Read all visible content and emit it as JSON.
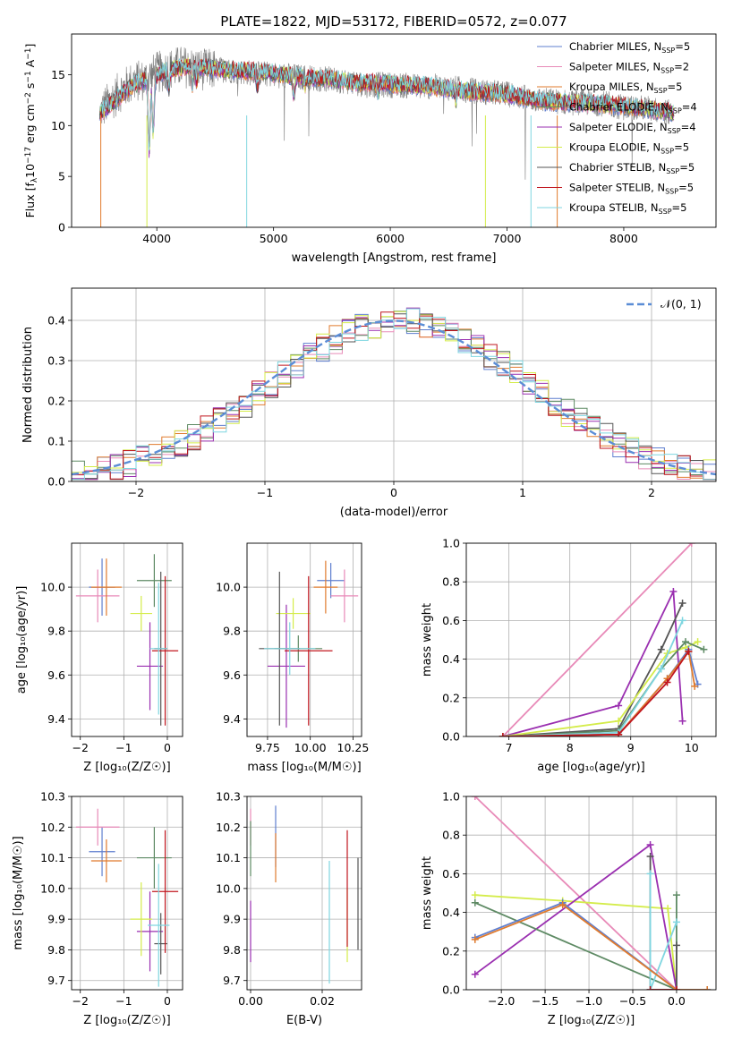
{
  "figure": {
    "title": "PLATE=1822, MJD=53172, FIBERID=0572, z=0.077"
  },
  "colors": {
    "Chabrier MILES": "#5f7fcf",
    "Salpeter MILES": "#e88ab8",
    "Kroupa MILES": "#e07b2e",
    "Chabrier ELODIE": "#5e8a64",
    "Salpeter ELODIE": "#9a2fb0",
    "Kroupa ELODIE": "#d4ec4a",
    "Chabrier STELIB": "#555555",
    "Salpeter STELIB": "#c0161e",
    "Kroupa STELIB": "#7fd6e0"
  },
  "chart_data": [
    {
      "id": "spectrum",
      "type": "line",
      "xlabel": "wavelength [Angstrom, rest frame]",
      "ylabel": "Flux [f$_{\\lambda}$10$^{-17}$ erg cm$^{-2}$ s$^{-1}$ A$^{-1}$]",
      "ylabel_parts": {
        "base": "Flux [f",
        "sub1": "λ",
        "mid": "10",
        "sup1": "−17",
        "mid2": " erg cm",
        "sup2": "−2",
        "mid3": " s",
        "sup3": "−1",
        "mid4": " A",
        "sup4": "−1",
        "end": "]"
      },
      "xlim": [
        3270,
        8790
      ],
      "ylim": [
        0,
        19
      ],
      "xticks": [
        4000,
        5000,
        6000,
        7000,
        8000
      ],
      "yticks": [
        0,
        5,
        10,
        15
      ],
      "grid": false,
      "legend_placement": "top-right",
      "legend": [
        {
          "label": "Chabrier MILES, N",
          "sub": "SSP",
          "eq": "=5",
          "series": "Chabrier MILES"
        },
        {
          "label": "Salpeter MILES, N",
          "sub": "SSP",
          "eq": "=2",
          "series": "Salpeter MILES"
        },
        {
          "label": "Kroupa MILES, N",
          "sub": "SSP",
          "eq": "=5",
          "series": "Kroupa MILES"
        },
        {
          "label": "Chabrier ELODIE, N",
          "sub": "SSP",
          "eq": "=4",
          "series": "Chabrier ELODIE"
        },
        {
          "label": "Salpeter ELODIE, N",
          "sub": "SSP",
          "eq": "=4",
          "series": "Salpeter ELODIE"
        },
        {
          "label": "Kroupa ELODIE, N",
          "sub": "SSP",
          "eq": "=5",
          "series": "Kroupa ELODIE"
        },
        {
          "label": "Chabrier STELIB, N",
          "sub": "SSP",
          "eq": "=5",
          "series": "Chabrier STELIB"
        },
        {
          "label": "Salpeter STELIB, N",
          "sub": "SSP",
          "eq": "=5",
          "series": "Salpeter STELIB"
        },
        {
          "label": "Kroupa STELIB, N",
          "sub": "SSP",
          "eq": "=5",
          "series": "Kroupa STELIB"
        }
      ],
      "data_continuum": [
        [
          3520,
          11.5
        ],
        [
          3700,
          13.5
        ],
        [
          3800,
          14.3
        ],
        [
          3900,
          14.5
        ],
        [
          4000,
          15.2
        ],
        [
          4200,
          15.8
        ],
        [
          4400,
          15.5
        ],
        [
          4600,
          15.5
        ],
        [
          4800,
          15.2
        ],
        [
          5000,
          15.0
        ],
        [
          5200,
          14.8
        ],
        [
          5400,
          14.6
        ],
        [
          5600,
          14.4
        ],
        [
          5800,
          14.0
        ],
        [
          6000,
          14.0
        ],
        [
          6200,
          13.9
        ],
        [
          6400,
          13.8
        ],
        [
          6600,
          13.6
        ],
        [
          6800,
          13.3
        ],
        [
          7000,
          13.1
        ],
        [
          7200,
          12.6
        ],
        [
          7500,
          12.3
        ],
        [
          7800,
          12.2
        ],
        [
          8000,
          11.8
        ],
        [
          8200,
          11.7
        ],
        [
          8420,
          11.2
        ]
      ],
      "model_continuum": [
        [
          3520,
          11.3
        ],
        [
          3650,
          12.5
        ],
        [
          3800,
          14.0
        ],
        [
          3950,
          14.6
        ],
        [
          4100,
          15.5
        ],
        [
          4300,
          15.9
        ],
        [
          4500,
          15.6
        ],
        [
          4700,
          15.4
        ],
        [
          4900,
          15.3
        ],
        [
          5100,
          15.0
        ],
        [
          5300,
          14.7
        ],
        [
          5500,
          14.6
        ],
        [
          5700,
          14.2
        ],
        [
          5900,
          14.2
        ],
        [
          6100,
          14.0
        ],
        [
          6300,
          13.9
        ],
        [
          6500,
          13.6
        ],
        [
          6700,
          13.3
        ],
        [
          6900,
          13.2
        ],
        [
          7100,
          12.9
        ],
        [
          7300,
          12.4
        ],
        [
          7500,
          12.3
        ],
        [
          7800,
          12.1
        ],
        [
          8100,
          11.8
        ],
        [
          8420,
          11.3
        ]
      ]
    },
    {
      "id": "residuals",
      "type": "step-histogram",
      "xlabel": "(data-model)/error",
      "ylabel": "Normed distribution",
      "xlim": [
        -2.5,
        2.5
      ],
      "ylim": [
        0,
        0.48
      ],
      "xticks": [
        -2,
        -1,
        0,
        1,
        2
      ],
      "yticks": [
        0.0,
        0.1,
        0.2,
        0.3,
        0.4
      ],
      "grid": true,
      "legend_placement": "top-right",
      "reference_label": "𝒩(0, 1)",
      "reference_color": "#5b8dd6",
      "bin_width": 0.1,
      "bin_start": -2.5
    },
    {
      "id": "age_vs_Z",
      "type": "errorbar",
      "xlabel": "Z [log₁₀(Z/Z☉)]",
      "ylabel": "age  [log₁₀(age/yr)]",
      "xlim": [
        -2.2,
        0.35
      ],
      "ylim": [
        9.32,
        10.2
      ],
      "xticks": [
        -2,
        -1,
        0
      ],
      "yticks": [
        9.4,
        9.6,
        9.8,
        10.0
      ],
      "grid": true,
      "points": [
        {
          "series": "Chabrier MILES",
          "x": -1.5,
          "xerr": 0.3,
          "y": 10.0,
          "yerr": 0.13
        },
        {
          "series": "Salpeter MILES",
          "x": -1.6,
          "xerr": 0.5,
          "y": 9.96,
          "yerr": 0.12
        },
        {
          "series": "Kroupa MILES",
          "x": -1.4,
          "xerr": 0.35,
          "y": 10.0,
          "yerr": 0.13
        },
        {
          "series": "Chabrier ELODIE",
          "x": -0.3,
          "xerr": 0.4,
          "y": 10.03,
          "yerr": 0.12
        },
        {
          "series": "Salpeter ELODIE",
          "x": -0.4,
          "xerr": 0.3,
          "y": 9.64,
          "yerr": 0.2
        },
        {
          "series": "Kroupa ELODIE",
          "x": -0.6,
          "xerr": 0.25,
          "y": 9.88,
          "yerr": 0.08
        },
        {
          "series": "Chabrier STELIB",
          "x": -0.15,
          "xerr": 0.15,
          "y": 9.72,
          "yerr": 0.35
        },
        {
          "series": "Salpeter STELIB",
          "x": -0.05,
          "xerr": 0.3,
          "y": 9.71,
          "yerr": 0.34
        },
        {
          "series": "Kroupa STELIB",
          "x": -0.2,
          "xerr": 0.2,
          "y": 9.72,
          "yerr": 0.3
        }
      ]
    },
    {
      "id": "age_vs_mass",
      "type": "errorbar",
      "xlabel": "mass [log₁₀(M/M☉)]",
      "ylabel": "",
      "xlim": [
        9.63,
        10.3
      ],
      "ylim": [
        9.32,
        10.2
      ],
      "xticks": [
        9.75,
        10.0,
        10.25
      ],
      "yticks": [
        9.4,
        9.6,
        9.8,
        10.0
      ],
      "grid": true,
      "points": [
        {
          "series": "Chabrier MILES",
          "x": 10.12,
          "xerr": 0.08,
          "y": 10.03,
          "yerr": 0.08
        },
        {
          "series": "Salpeter MILES",
          "x": 10.2,
          "xerr": 0.08,
          "y": 9.96,
          "yerr": 0.12
        },
        {
          "series": "Kroupa MILES",
          "x": 10.09,
          "xerr": 0.07,
          "y": 10.0,
          "yerr": 0.12
        },
        {
          "series": "Chabrier ELODIE",
          "x": 9.93,
          "xerr": 0.14,
          "y": 9.72,
          "yerr": 0.06
        },
        {
          "series": "Salpeter ELODIE",
          "x": 9.86,
          "xerr": 0.11,
          "y": 9.64,
          "yerr": 0.28
        },
        {
          "series": "Kroupa ELODIE",
          "x": 9.9,
          "xerr": 0.1,
          "y": 9.88,
          "yerr": 0.07
        },
        {
          "series": "Chabrier STELIB",
          "x": 9.82,
          "xerr": 0.12,
          "y": 9.72,
          "yerr": 0.35
        },
        {
          "series": "Salpeter STELIB",
          "x": 9.99,
          "xerr": 0.14,
          "y": 9.71,
          "yerr": 0.34
        },
        {
          "series": "Kroupa STELIB",
          "x": 9.88,
          "xerr": 0.15,
          "y": 9.72,
          "yerr": 0.12
        }
      ]
    },
    {
      "id": "weight_vs_age",
      "type": "line",
      "xlabel": "age  [log₁₀(age/yr)]",
      "ylabel": "mass weight",
      "xlim": [
        6.3,
        10.4
      ],
      "ylim": [
        0,
        1.0
      ],
      "xticks": [
        7,
        8,
        9,
        10
      ],
      "yticks": [
        0.0,
        0.2,
        0.4,
        0.6,
        0.8,
        1.0
      ],
      "grid": true,
      "series": [
        {
          "series": "Salpeter MILES",
          "x": [
            6.9,
            10.0
          ],
          "y": [
            0.0,
            1.0
          ]
        },
        {
          "series": "Salpeter ELODIE",
          "x": [
            6.9,
            8.8,
            9.7,
            9.85
          ],
          "y": [
            0.0,
            0.16,
            0.75,
            0.08
          ]
        },
        {
          "series": "Chabrier STELIB",
          "x": [
            6.9,
            8.8,
            9.5,
            9.85
          ],
          "y": [
            0.0,
            0.04,
            0.45,
            0.69
          ]
        },
        {
          "series": "Kroupa ELODIE",
          "x": [
            6.9,
            8.8,
            9.6,
            9.9,
            10.1
          ],
          "y": [
            0.0,
            0.08,
            0.43,
            0.46,
            0.49
          ]
        },
        {
          "series": "Chabrier ELODIE",
          "x": [
            6.9,
            8.8,
            9.5,
            9.9,
            10.2
          ],
          "y": [
            0.0,
            0.03,
            0.35,
            0.49,
            0.45
          ]
        },
        {
          "series": "Kroupa STELIB",
          "x": [
            6.9,
            8.8,
            9.5,
            9.85
          ],
          "y": [
            0.0,
            0.02,
            0.35,
            0.6
          ]
        },
        {
          "series": "Chabrier MILES",
          "x": [
            6.9,
            8.8,
            9.6,
            9.95,
            10.1
          ],
          "y": [
            0.0,
            0.01,
            0.3,
            0.45,
            0.27
          ]
        },
        {
          "series": "Kroupa MILES",
          "x": [
            6.9,
            8.8,
            9.6,
            9.95,
            10.05
          ],
          "y": [
            0.0,
            0.01,
            0.3,
            0.44,
            0.26
          ]
        },
        {
          "series": "Salpeter STELIB",
          "x": [
            6.9,
            8.8,
            9.6,
            9.95
          ],
          "y": [
            0.0,
            0.01,
            0.28,
            0.44
          ]
        }
      ]
    },
    {
      "id": "mass_vs_Z",
      "type": "errorbar",
      "xlabel": "Z [log₁₀(Z/Z☉)]",
      "ylabel": "mass [log₁₀(M/M☉)]",
      "xlim": [
        -2.2,
        0.35
      ],
      "ylim": [
        9.67,
        10.3
      ],
      "xticks": [
        -2,
        -1,
        0
      ],
      "yticks": [
        9.7,
        9.8,
        9.9,
        10.0,
        10.1,
        10.2,
        10.3
      ],
      "grid": true,
      "points": [
        {
          "series": "Chabrier MILES",
          "x": -1.5,
          "xerr": 0.3,
          "y": 10.12,
          "yerr": 0.08
        },
        {
          "series": "Salpeter MILES",
          "x": -1.6,
          "xerr": 0.5,
          "y": 10.2,
          "yerr": 0.06
        },
        {
          "series": "Kroupa MILES",
          "x": -1.4,
          "xerr": 0.35,
          "y": 10.09,
          "yerr": 0.07
        },
        {
          "series": "Chabrier ELODIE",
          "x": -0.3,
          "xerr": 0.4,
          "y": 10.1,
          "yerr": 0.1
        },
        {
          "series": "Salpeter ELODIE",
          "x": -0.4,
          "xerr": 0.3,
          "y": 9.86,
          "yerr": 0.13
        },
        {
          "series": "Kroupa ELODIE",
          "x": -0.6,
          "xerr": 0.25,
          "y": 9.9,
          "yerr": 0.12
        },
        {
          "series": "Chabrier STELIB",
          "x": -0.15,
          "xerr": 0.15,
          "y": 9.82,
          "yerr": 0.1
        },
        {
          "series": "Salpeter STELIB",
          "x": -0.05,
          "xerr": 0.3,
          "y": 9.99,
          "yerr": 0.2
        },
        {
          "series": "Kroupa STELIB",
          "x": -0.2,
          "xerr": 0.25,
          "y": 9.88,
          "yerr": 0.2
        }
      ]
    },
    {
      "id": "mass_vs_ebv",
      "type": "errorbar",
      "xlabel": "E(B-V)",
      "ylabel": "",
      "xlim": [
        -0.001,
        0.031
      ],
      "ylim": [
        9.67,
        10.3
      ],
      "xticks": [
        0.0,
        0.02
      ],
      "yticks": [
        9.7,
        9.8,
        9.9,
        10.0,
        10.1,
        10.2,
        10.3
      ],
      "grid": true,
      "points": [
        {
          "series": "Chabrier MILES",
          "x": 0.007,
          "xerr": 0,
          "y": 10.17,
          "yerr": 0.1
        },
        {
          "series": "Salpeter MILES",
          "x": 0.0,
          "xerr": 0,
          "y": 10.2,
          "yerr": 0.06
        },
        {
          "series": "Kroupa MILES",
          "x": 0.007,
          "xerr": 0,
          "y": 10.1,
          "yerr": 0.08
        },
        {
          "series": "Chabrier ELODIE",
          "x": 0.0,
          "xerr": 0,
          "y": 10.13,
          "yerr": 0.09
        },
        {
          "series": "Salpeter ELODIE",
          "x": 0.0,
          "xerr": 0,
          "y": 9.86,
          "yerr": 0.1
        },
        {
          "series": "Kroupa ELODIE",
          "x": 0.027,
          "xerr": 0,
          "y": 9.88,
          "yerr": 0.12
        },
        {
          "series": "Chabrier STELIB",
          "x": 0.03,
          "xerr": 0,
          "y": 9.95,
          "yerr": 0.15
        },
        {
          "series": "Salpeter STELIB",
          "x": 0.027,
          "xerr": 0,
          "y": 10.0,
          "yerr": 0.19
        },
        {
          "series": "Kroupa STELIB",
          "x": 0.022,
          "xerr": 0,
          "y": 9.89,
          "yerr": 0.2
        }
      ]
    },
    {
      "id": "weight_vs_Z",
      "type": "line",
      "xlabel": "Z [log₁₀(Z/Z☉)]",
      "ylabel": "mass weight",
      "xlim": [
        -2.4,
        0.45
      ],
      "ylim": [
        0,
        1.0
      ],
      "xticks": [
        -2.0,
        -1.5,
        -1.0,
        -0.5,
        0.0
      ],
      "yticks": [
        0.0,
        0.2,
        0.4,
        0.6,
        0.8,
        1.0
      ],
      "grid": true,
      "series": [
        {
          "series": "Salpeter MILES",
          "x": [
            -2.3,
            0.0
          ],
          "y": [
            1.0,
            0.0
          ]
        },
        {
          "series": "Kroupa ELODIE",
          "x": [
            -2.3,
            -1.3,
            -0.1,
            0.0
          ],
          "y": [
            0.49,
            0.46,
            0.42,
            0.0
          ]
        },
        {
          "series": "Salpeter ELODIE",
          "x": [
            -2.3,
            -0.3,
            0.0
          ],
          "y": [
            0.08,
            0.75,
            0.0
          ]
        },
        {
          "series": "Chabrier ELODIE",
          "x": [
            -2.3,
            0.0,
            0.0,
            0.0
          ],
          "y": [
            0.45,
            0.0,
            0.49,
            0.0
          ]
        },
        {
          "series": "Chabrier STELIB",
          "x": [
            -0.3,
            -0.3,
            0.0,
            0.0,
            0.0
          ],
          "y": [
            0.69,
            0.0,
            0.0,
            0.23,
            0.0
          ]
        },
        {
          "series": "Kroupa STELIB",
          "x": [
            -0.3,
            -0.3,
            0.0
          ],
          "y": [
            0.6,
            0.0,
            0.35
          ]
        },
        {
          "series": "Chabrier MILES",
          "x": [
            -2.3,
            -1.3,
            0.0,
            0.35
          ],
          "y": [
            0.27,
            0.45,
            0.0,
            0.0
          ]
        },
        {
          "series": "Kroupa MILES",
          "x": [
            -2.3,
            -1.3,
            0.0,
            0.35
          ],
          "y": [
            0.26,
            0.44,
            0.0,
            0.0
          ]
        },
        {
          "series": "Salpeter STELIB",
          "x": [
            -0.3,
            0.0
          ],
          "y": [
            0.0,
            0.0
          ]
        }
      ]
    }
  ]
}
